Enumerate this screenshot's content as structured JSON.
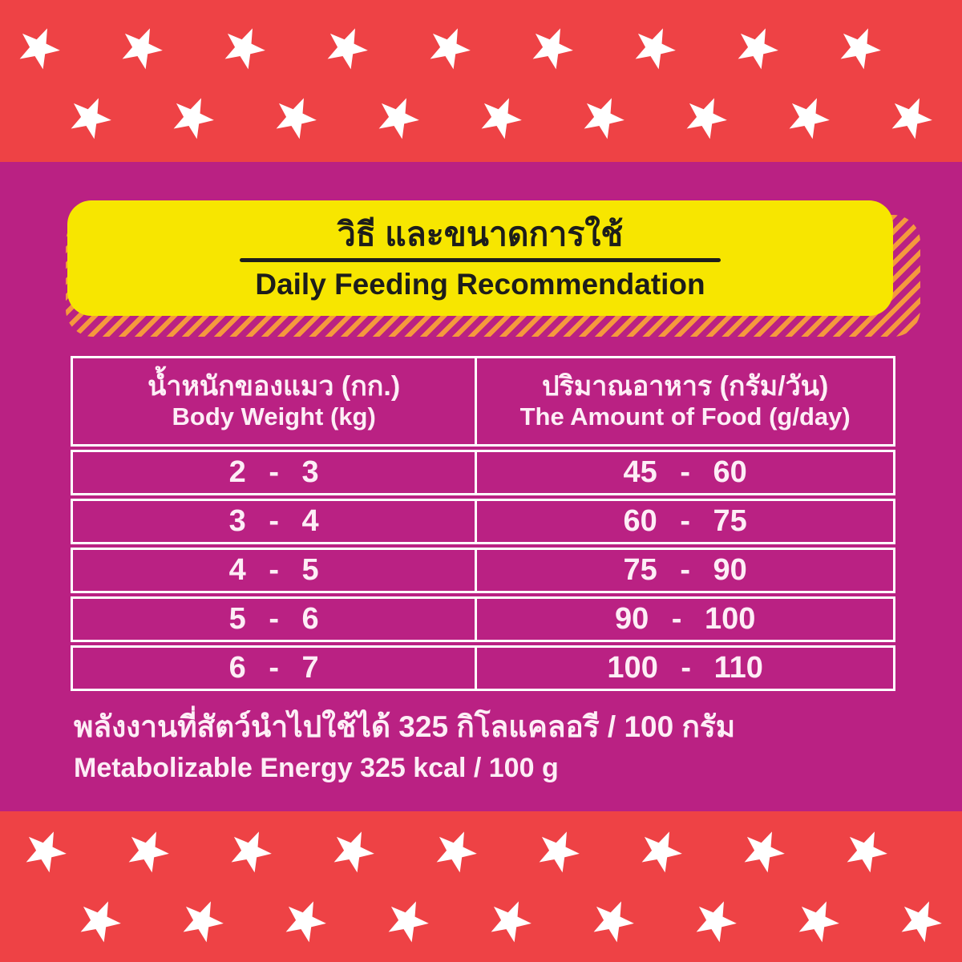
{
  "banner": {
    "title_th": "วิธี และขนาดการใช้",
    "title_en": "Daily Feeding Recommendation"
  },
  "table": {
    "header": {
      "col1_th": "น้ำหนักของแมว (กก.)",
      "col1_en": "Body Weight (kg)",
      "col2_th": "ปริมาณอาหาร (กรัม/วัน)",
      "col2_en": "The Amount of Food (g/day)"
    },
    "rows": [
      {
        "weight": "2 - 3",
        "food": "45 - 60"
      },
      {
        "weight": "3 - 4",
        "food": "60 - 75"
      },
      {
        "weight": "4 - 5",
        "food": "75 - 90"
      },
      {
        "weight": "5 - 6",
        "food": "90 - 100"
      },
      {
        "weight": "6 - 7",
        "food": "100 - 110"
      }
    ]
  },
  "footer": {
    "line_th": "พลังงานที่สัตว์นำไปใช้ได้ 325 กิโลแคลอรี / 100 กรัม",
    "line_en": "Metabolizable Energy 325 kcal / 100 g"
  },
  "decor": {
    "star_icon": "white-five-point-star"
  },
  "colors": {
    "band_red": "#ee4245",
    "background_magenta": "#ba2183",
    "banner_yellow": "#f7e600",
    "hatch_orange": "#f5993d",
    "banner_text": "#1d1d1b",
    "table_border": "#ffffff",
    "table_text": "#fdeef6"
  }
}
